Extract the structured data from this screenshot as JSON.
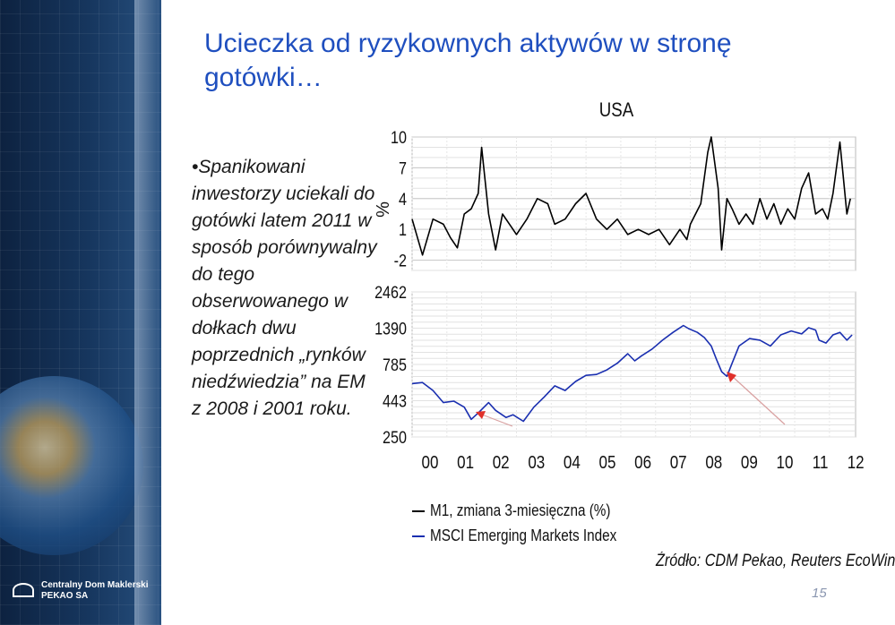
{
  "title": "Ucieczka od ryzykownych aktywów w stronę gotówki…",
  "bullet_text": "•Spanikowani inwestorzy uciekali do gotówki latem 2011 w sposób porównywalny do tego obserwowanego w dołkach dwu poprzednich „rynków niedźwiedzia” na EM z 2008 i 2001 roku.",
  "logo": {
    "line1": "Centralny Dom Maklerski",
    "line2": "PEKAO SA"
  },
  "source": "Źródło: CDM Pekao, Reuters EcoWin",
  "page_number": "15",
  "colors": {
    "title": "#1f4fbf",
    "m1_line": "#000000",
    "msci_line": "#1a2fb0",
    "arrow": "#e0302a",
    "band": "#16365e"
  },
  "chart_data": [
    {
      "type": "line",
      "title": "USA",
      "ylabel": "%",
      "yticks": [
        "10",
        "7",
        "4",
        "1",
        "-2"
      ],
      "ylim": [
        -3,
        10
      ],
      "xlim": [
        2000.0,
        2012.75
      ],
      "series": [
        {
          "name": "M1, zmiana 3-miesięczna (%)",
          "x": [
            2000.0,
            2000.3,
            2000.6,
            2000.9,
            2001.1,
            2001.3,
            2001.5,
            2001.7,
            2001.9,
            2002.0,
            2002.2,
            2002.4,
            2002.6,
            2002.8,
            2003.0,
            2003.3,
            2003.6,
            2003.9,
            2004.1,
            2004.4,
            2004.7,
            2005.0,
            2005.3,
            2005.6,
            2005.9,
            2006.2,
            2006.5,
            2006.8,
            2007.1,
            2007.4,
            2007.7,
            2007.9,
            2008.0,
            2008.3,
            2008.5,
            2008.6,
            2008.8,
            2008.9,
            2009.05,
            2009.2,
            2009.4,
            2009.6,
            2009.8,
            2010.0,
            2010.2,
            2010.4,
            2010.6,
            2010.8,
            2011.0,
            2011.2,
            2011.4,
            2011.6,
            2011.8,
            2011.95,
            2012.1,
            2012.3,
            2012.5,
            2012.6
          ],
          "y": [
            2.0,
            -1.5,
            2.0,
            1.5,
            0.2,
            -0.8,
            2.5,
            3.0,
            4.5,
            9.0,
            2.5,
            -1.0,
            2.5,
            1.5,
            0.5,
            2.0,
            4.0,
            3.5,
            1.5,
            2.0,
            3.5,
            4.5,
            2.0,
            1.0,
            2.0,
            0.5,
            1.0,
            0.5,
            1.0,
            -0.5,
            1.0,
            0.0,
            1.5,
            3.5,
            8.5,
            10.0,
            5.0,
            -1.0,
            4.0,
            3.0,
            1.5,
            2.5,
            1.5,
            4.0,
            2.0,
            3.5,
            1.5,
            3.0,
            2.0,
            5.0,
            6.5,
            2.5,
            3.0,
            2.0,
            4.5,
            9.5,
            2.5,
            4.0
          ]
        }
      ]
    },
    {
      "type": "line",
      "yscale": "log",
      "yticks": [
        "2462",
        "1390",
        "785",
        "443",
        "250"
      ],
      "ylim": [
        250,
        2462
      ],
      "xlim": [
        2000.0,
        2012.75
      ],
      "xticks": [
        "00",
        "01",
        "02",
        "03",
        "04",
        "05",
        "06",
        "07",
        "08",
        "09",
        "10",
        "11",
        "12"
      ],
      "series": [
        {
          "name": "MSCI Emerging Markets Index",
          "x": [
            2000.0,
            2000.3,
            2000.6,
            2000.9,
            2001.2,
            2001.5,
            2001.7,
            2001.9,
            2002.2,
            2002.4,
            2002.7,
            2002.9,
            2003.2,
            2003.5,
            2003.8,
            2004.1,
            2004.4,
            2004.7,
            2005.0,
            2005.3,
            2005.6,
            2005.9,
            2006.2,
            2006.4,
            2006.6,
            2006.9,
            2007.2,
            2007.5,
            2007.8,
            2007.95,
            2008.2,
            2008.4,
            2008.6,
            2008.75,
            2008.9,
            2009.05,
            2009.2,
            2009.4,
            2009.7,
            2010.0,
            2010.3,
            2010.6,
            2010.9,
            2011.2,
            2011.4,
            2011.6,
            2011.7,
            2011.9,
            2012.1,
            2012.3,
            2012.5,
            2012.65
          ],
          "y": [
            580,
            590,
            520,
            430,
            440,
            400,
            330,
            365,
            430,
            380,
            340,
            355,
            320,
            400,
            470,
            560,
            520,
            600,
            660,
            670,
            720,
            800,
            930,
            830,
            900,
            1000,
            1150,
            1300,
            1450,
            1380,
            1300,
            1200,
            1050,
            850,
            700,
            650,
            800,
            1050,
            1180,
            1150,
            1050,
            1250,
            1330,
            1270,
            1400,
            1350,
            1150,
            1100,
            1250,
            1300,
            1150,
            1250
          ]
        }
      ]
    }
  ]
}
